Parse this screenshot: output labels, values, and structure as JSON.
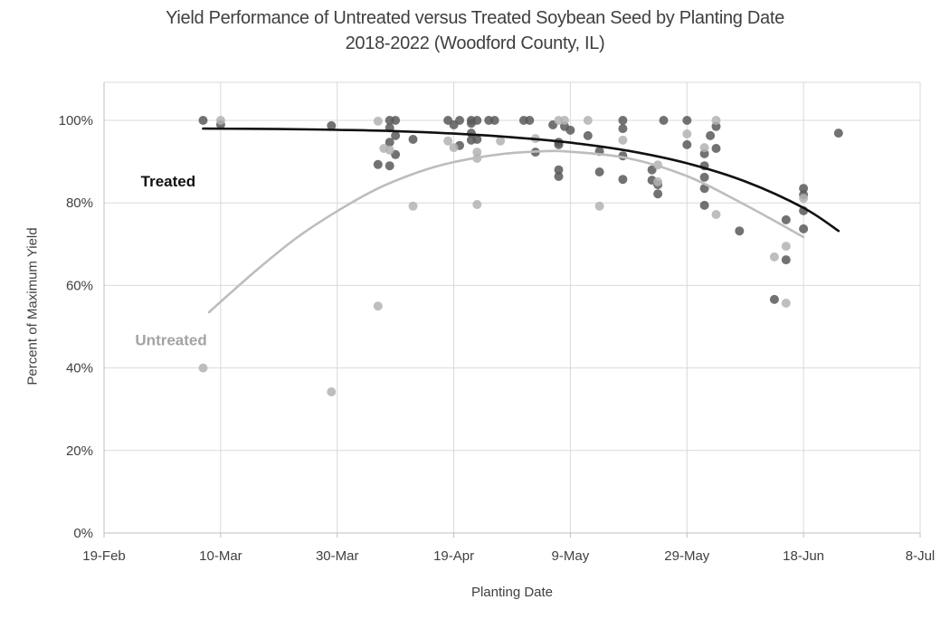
{
  "title": {
    "line1": "Yield Performance of Untreated versus Treated Soybean Seed by Planting Date",
    "line2": "2018-2022 (Woodford County, IL)"
  },
  "axes": {
    "x": {
      "label": "Planting Date"
    },
    "y": {
      "label": "Percent of Maximum Yield"
    }
  },
  "colors": {
    "background": "#ffffff",
    "text": "#404040",
    "title": "#3f3f3f",
    "gridline": "#d9d9d9",
    "axis": "#bfbfbf",
    "treated_point": "#595959",
    "untreated_point": "#b3b3b3",
    "treated_line": "#111111",
    "untreated_line": "#bdbdbd",
    "treated_label": "#111111",
    "untreated_label": "#a3a3a3"
  },
  "chart_data": {
    "type": "scatter",
    "title": "Yield Performance of Untreated versus Treated Soybean Seed by Planting Date 2018-2022 (Woodford County, IL)",
    "xlabel": "Planting Date",
    "ylabel": "Percent of Maximum Yield",
    "x_ticks": [
      "19-Feb",
      "10-Mar",
      "30-Mar",
      "19-Apr",
      "9-May",
      "29-May",
      "18-Jun",
      "8-Jul"
    ],
    "x_tick_days": [
      0,
      20,
      40,
      60,
      80,
      100,
      120,
      140
    ],
    "y_ticks": [
      "0%",
      "20%",
      "40%",
      "60%",
      "80%",
      "100%"
    ],
    "y_tick_values": [
      0,
      20,
      40,
      60,
      80,
      100
    ],
    "ylim": [
      0,
      109
    ],
    "grid": true,
    "legend": "in-plot text annotations",
    "series": [
      {
        "name": "Treated",
        "color": "#595959",
        "points": [
          [
            "7-Mar",
            17,
            100
          ],
          [
            "10-Mar",
            20,
            99
          ],
          [
            "29-Mar",
            39,
            98.7
          ],
          [
            "6-Apr",
            47,
            89.3
          ],
          [
            "8-Apr",
            49,
            100
          ],
          [
            "9-Apr",
            50,
            100
          ],
          [
            "8-Apr",
            49,
            98.2
          ],
          [
            "9-Apr",
            50,
            96.3
          ],
          [
            "8-Apr",
            49,
            94.7
          ],
          [
            "9-Apr",
            50,
            91.7
          ],
          [
            "8-Apr",
            49,
            89
          ],
          [
            "12-Apr",
            53,
            95.4
          ],
          [
            "18-Apr",
            59,
            100
          ],
          [
            "20-Apr",
            61,
            100
          ],
          [
            "19-Apr",
            60,
            98.9
          ],
          [
            "22-Apr",
            63,
            100
          ],
          [
            "23-Apr",
            64,
            100
          ],
          [
            "22-Apr",
            63,
            99.3
          ],
          [
            "25-Apr",
            66,
            100
          ],
          [
            "26-Apr",
            67,
            100
          ],
          [
            "22-Apr",
            63,
            96.9
          ],
          [
            "23-Apr",
            64,
            95.4
          ],
          [
            "22-Apr",
            63,
            95.2
          ],
          [
            "20-Apr",
            61,
            93.9
          ],
          [
            "1-May",
            72,
            100
          ],
          [
            "2-May",
            73,
            100
          ],
          [
            "3-May",
            74,
            92.3
          ],
          [
            "6-May",
            77,
            98.9
          ],
          [
            "8-May",
            79,
            98.5
          ],
          [
            "9-May",
            80,
            97.6
          ],
          [
            "7-May",
            78,
            94.7
          ],
          [
            "7-May",
            78,
            94.1
          ],
          [
            "7-May",
            78,
            88
          ],
          [
            "7-May",
            78,
            86.4
          ],
          [
            "12-May",
            83,
            96.3
          ],
          [
            "14-May",
            85,
            92.5
          ],
          [
            "14-May",
            85,
            87.5
          ],
          [
            "18-May",
            89,
            100
          ],
          [
            "18-May",
            89,
            98
          ],
          [
            "18-May",
            89,
            91.4
          ],
          [
            "18-May",
            89,
            85.7
          ],
          [
            "23-May",
            94,
            88
          ],
          [
            "23-May",
            94,
            85.5
          ],
          [
            "24-May",
            95,
            84.4
          ],
          [
            "24-May",
            95,
            82.2
          ],
          [
            "25-May",
            96,
            100
          ],
          [
            "29-May",
            100,
            100
          ],
          [
            "29-May",
            100,
            94.1
          ],
          [
            "3-Jun",
            105,
            98.5
          ],
          [
            "2-Jun",
            104,
            96.3
          ],
          [
            "3-Jun",
            105,
            93.2
          ],
          [
            "1-Jun",
            103,
            91.9
          ],
          [
            "1-Jun",
            103,
            89
          ],
          [
            "1-Jun",
            103,
            86.2
          ],
          [
            "1-Jun",
            103,
            83.5
          ],
          [
            "1-Jun",
            103,
            79.4
          ],
          [
            "7-Jun",
            109,
            73.2
          ],
          [
            "15-Jun",
            117,
            75.9
          ],
          [
            "18-Jun",
            120,
            83.5
          ],
          [
            "18-Jun",
            120,
            82
          ],
          [
            "18-Jun",
            120,
            78.1
          ],
          [
            "18-Jun",
            120,
            73.7
          ],
          [
            "15-Jun",
            117,
            66.2
          ],
          [
            "13-Jun",
            115,
            56.6
          ],
          [
            "24-Jun",
            126,
            96.9
          ]
        ]
      },
      {
        "name": "Untreated",
        "color": "#b3b3b3",
        "points": [
          [
            "10-Mar",
            20,
            100
          ],
          [
            "7-Mar",
            17,
            40
          ],
          [
            "29-Mar",
            39,
            34.2
          ],
          [
            "6-Apr",
            47,
            99.8
          ],
          [
            "6-Apr",
            47,
            55
          ],
          [
            "7-Apr",
            48,
            93.2
          ],
          [
            "8-Apr",
            49,
            92.8
          ],
          [
            "12-Apr",
            53,
            79.2
          ],
          [
            "18-Apr",
            59,
            95
          ],
          [
            "19-Apr",
            60,
            93.4
          ],
          [
            "27-Apr",
            68,
            95
          ],
          [
            "23-Apr",
            64,
            92.3
          ],
          [
            "23-Apr",
            64,
            90.8
          ],
          [
            "23-Apr",
            64,
            79.6
          ],
          [
            "3-May",
            74,
            95.6
          ],
          [
            "7-May",
            78,
            100
          ],
          [
            "8-May",
            79,
            100
          ],
          [
            "12-May",
            83,
            100
          ],
          [
            "14-May",
            85,
            79.2
          ],
          [
            "18-May",
            89,
            95.2
          ],
          [
            "24-May",
            95,
            89.2
          ],
          [
            "24-May",
            95,
            85.1
          ],
          [
            "29-May",
            100,
            96.7
          ],
          [
            "3-Jun",
            105,
            100
          ],
          [
            "1-Jun",
            103,
            93.4
          ],
          [
            "3-Jun",
            105,
            77.2
          ],
          [
            "18-Jun",
            120,
            81.1
          ],
          [
            "15-Jun",
            117,
            69.5
          ],
          [
            "13-Jun",
            115,
            66.9
          ],
          [
            "15-Jun",
            117,
            55.7
          ]
        ]
      }
    ],
    "trendlines": [
      {
        "name": "Treated",
        "color": "#111111",
        "points": [
          [
            17,
            98.0
          ],
          [
            30,
            97.9
          ],
          [
            40,
            97.7
          ],
          [
            50,
            97.4
          ],
          [
            60,
            96.8
          ],
          [
            70,
            95.9
          ],
          [
            80,
            94.6
          ],
          [
            90,
            92.6
          ],
          [
            100,
            89.6
          ],
          [
            110,
            85.2
          ],
          [
            120,
            78.8
          ],
          [
            126,
            73.2
          ]
        ]
      },
      {
        "name": "Untreated",
        "color": "#bdbdbd",
        "points": [
          [
            18,
            53.5
          ],
          [
            26,
            63.5
          ],
          [
            33,
            71.5
          ],
          [
            40,
            78
          ],
          [
            47,
            83.5
          ],
          [
            54,
            87.5
          ],
          [
            60,
            89.9
          ],
          [
            68,
            91.8
          ],
          [
            75,
            92.5
          ],
          [
            80,
            92.4
          ],
          [
            90,
            90.8
          ],
          [
            100,
            86.5
          ],
          [
            110,
            79.5
          ],
          [
            120,
            71.7
          ]
        ]
      }
    ],
    "annotations": [
      {
        "text": "Treated",
        "day": 11,
        "pct": 84,
        "color": "#111111"
      },
      {
        "text": "Untreated",
        "day": 11.5,
        "pct": 45.5,
        "color": "#a3a3a3"
      }
    ]
  }
}
